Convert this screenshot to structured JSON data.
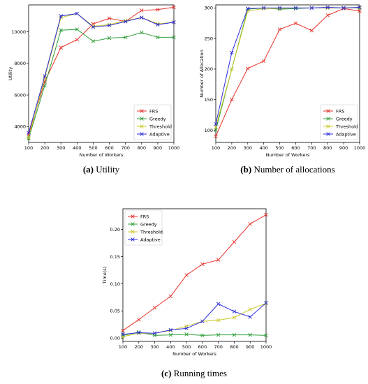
{
  "chart_data": [
    {
      "type": "line",
      "caption_label": "(a)",
      "caption_text": "Utility",
      "xlabel": "Number of Workers",
      "ylabel": "Utility",
      "x": [
        100,
        200,
        300,
        400,
        500,
        600,
        700,
        800,
        900,
        1000
      ],
      "xticks": [
        100,
        200,
        300,
        400,
        500,
        600,
        700,
        800,
        900,
        1000
      ],
      "xlim": [
        100,
        1000
      ],
      "ylim": [
        3000,
        11700
      ],
      "yticks": [
        4000,
        6000,
        8000,
        10000
      ],
      "legend_position": "lower-right",
      "grid": false,
      "series": [
        {
          "name": "FRS",
          "color": "#e8322b",
          "values": [
            3500,
            6850,
            9000,
            9500,
            10500,
            10850,
            10650,
            11350,
            11400,
            11550
          ]
        },
        {
          "name": "Greedy",
          "color": "#2e9e37",
          "values": [
            3250,
            6600,
            10100,
            10150,
            9400,
            9600,
            9650,
            9950,
            9650,
            9650
          ]
        },
        {
          "name": "Threshold",
          "color": "#c8c828",
          "values": [
            3300,
            7100,
            10900,
            11150,
            10350,
            10450,
            10700,
            10900,
            10500,
            10600
          ]
        },
        {
          "name": "Adaptive",
          "color": "#2b2bde",
          "values": [
            3600,
            7200,
            11000,
            11150,
            10300,
            10400,
            10650,
            10900,
            10450,
            10600
          ]
        }
      ]
    },
    {
      "type": "line",
      "caption_label": "(b)",
      "caption_text": "Number of allocations",
      "xlabel": "Number of Workers",
      "ylabel": "Number of Allocation",
      "x": [
        100,
        200,
        300,
        400,
        500,
        600,
        700,
        800,
        900,
        1000
      ],
      "xticks": [
        100,
        200,
        300,
        400,
        500,
        600,
        700,
        800,
        900,
        1000
      ],
      "xlim": [
        100,
        1000
      ],
      "ylim": [
        80,
        305
      ],
      "yticks": [
        100,
        150,
        200,
        250,
        300
      ],
      "legend_position": "lower-right",
      "grid": false,
      "series": [
        {
          "name": "FRS",
          "color": "#e8322b",
          "values": [
            90,
            150,
            201,
            213,
            265,
            275,
            263,
            288,
            299,
            295
          ]
        },
        {
          "name": "Greedy",
          "color": "#2e9e37",
          "values": [
            100,
            200,
            298,
            300,
            298,
            299,
            300,
            300,
            300,
            300
          ]
        },
        {
          "name": "Threshold",
          "color": "#c8c828",
          "values": [
            105,
            200,
            295,
            299,
            299,
            300,
            300,
            300,
            300,
            300
          ]
        },
        {
          "name": "Adaptive",
          "color": "#2b2bde",
          "values": [
            110,
            227,
            299,
            300,
            300,
            300,
            300,
            301,
            300,
            301
          ]
        }
      ]
    },
    {
      "type": "line",
      "caption_label": "(c)",
      "caption_text": "Running times",
      "xlabel": "Number of Workers",
      "ylabel": "Time(s)",
      "x": [
        100,
        200,
        300,
        400,
        500,
        600,
        700,
        800,
        900,
        1000
      ],
      "xticks": [
        100,
        200,
        300,
        400,
        500,
        600,
        700,
        800,
        900,
        1000
      ],
      "xlim": [
        100,
        1000
      ],
      "ylim": [
        -0.006,
        0.238
      ],
      "yticks": [
        0.0,
        0.05,
        0.1,
        0.15,
        0.2
      ],
      "ytick_labels": [
        "0.00",
        "0.05",
        "0.10",
        "0.15",
        "0.20"
      ],
      "legend_position": "upper-left",
      "grid": false,
      "series": [
        {
          "name": "FRS",
          "color": "#e8322b",
          "values": [
            0.014,
            0.034,
            0.056,
            0.077,
            0.116,
            0.136,
            0.144,
            0.177,
            0.21,
            0.227
          ]
        },
        {
          "name": "Greedy",
          "color": "#2e9e37",
          "values": [
            0.005,
            0.011,
            0.005,
            0.006,
            0.007,
            0.005,
            0.006,
            0.006,
            0.006,
            0.005
          ]
        },
        {
          "name": "Threshold",
          "color": "#c8c828",
          "values": [
            0.003,
            0.009,
            0.009,
            0.014,
            0.022,
            0.031,
            0.033,
            0.038,
            0.053,
            0.064
          ]
        },
        {
          "name": "Adaptive",
          "color": "#2b2bde",
          "values": [
            0.007,
            0.01,
            0.009,
            0.015,
            0.018,
            0.031,
            0.063,
            0.049,
            0.039,
            0.065
          ]
        }
      ]
    }
  ]
}
